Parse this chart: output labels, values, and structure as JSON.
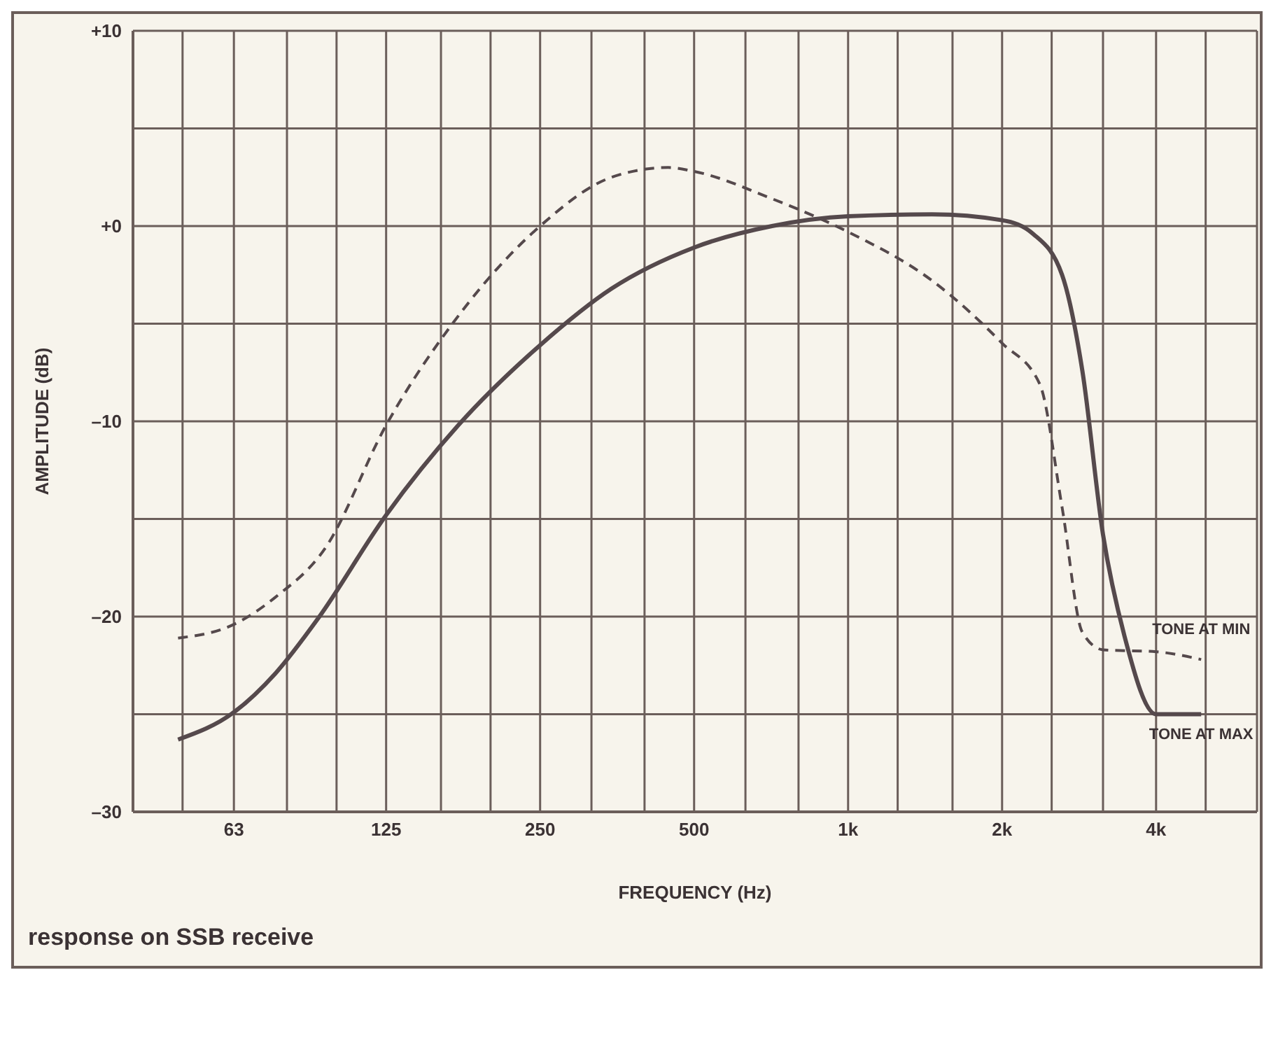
{
  "chart_data": {
    "type": "line",
    "xlabel": "FREQUENCY (Hz)",
    "ylabel": "AMPLITUDE (dB)",
    "log": "x",
    "grid": true,
    "marker": "none",
    "xlim": [
      40,
      6300
    ],
    "xticks": [
      {
        "value": 50,
        "label": null
      },
      {
        "value": 63,
        "label": "63"
      },
      {
        "value": 80,
        "label": null
      },
      {
        "value": 100,
        "label": null
      },
      {
        "value": 125,
        "label": "125"
      },
      {
        "value": 160,
        "label": null
      },
      {
        "value": 200,
        "label": null
      },
      {
        "value": 250,
        "label": "250"
      },
      {
        "value": 315,
        "label": null
      },
      {
        "value": 400,
        "label": null
      },
      {
        "value": 500,
        "label": "500"
      },
      {
        "value": 630,
        "label": null
      },
      {
        "value": 800,
        "label": null
      },
      {
        "value": 1000,
        "label": "1k"
      },
      {
        "value": 1250,
        "label": null
      },
      {
        "value": 1600,
        "label": null
      },
      {
        "value": 2000,
        "label": "2k"
      },
      {
        "value": 2500,
        "label": null
      },
      {
        "value": 3150,
        "label": null
      },
      {
        "value": 4000,
        "label": "4k"
      },
      {
        "value": 5000,
        "label": null
      }
    ],
    "ylim": [
      -30,
      10
    ],
    "yticks": [
      {
        "value": -30,
        "label": "–30"
      },
      {
        "value": -25,
        "label": null
      },
      {
        "value": -20,
        "label": "–20"
      },
      {
        "value": -15,
        "label": null
      },
      {
        "value": -10,
        "label": "–10"
      },
      {
        "value": -5,
        "label": null
      },
      {
        "value": 0,
        "label": "+0"
      },
      {
        "value": 5,
        "label": null
      },
      {
        "value": 10,
        "label": "+10"
      }
    ],
    "series": [
      {
        "color": "#55494c",
        "line_style": "solid",
        "x": [
          49,
          63,
          76,
          92,
          125,
          173,
          250,
          345,
          500,
          710,
          1000,
          1460,
          2000,
          2300,
          2620,
          2870,
          3150,
          3470,
          4000,
          4900
        ],
        "values": [
          -26.3,
          -24.9,
          -22.9,
          -20.1,
          -14.8,
          -10.2,
          -6.1,
          -3.2,
          -1.1,
          0,
          0.5,
          0.6,
          0.3,
          -0.4,
          -2.5,
          -7.4,
          -15.8,
          -21,
          -25,
          -25
        ]
      },
      {
        "color": "#55494c",
        "line_style": "dashed",
        "x": [
          49,
          63,
          76,
          95,
          125,
          173,
          250,
          345,
          445,
          500,
          710,
          1000,
          1460,
          2000,
          2370,
          2620,
          2870,
          3150,
          4000,
          4900
        ],
        "values": [
          -21.1,
          -20.4,
          -19,
          -16.5,
          -10.2,
          -4.6,
          0,
          2.5,
          3,
          2.8,
          1.4,
          -0.3,
          -2.8,
          -6,
          -8.1,
          -14.4,
          -20.8,
          -21.7,
          -21.8,
          -22.2
        ]
      }
    ],
    "annotations": [
      {
        "text": "TONE AT MIN",
        "x": 4900,
        "y": -22.2
      },
      {
        "text": "TONE AT MAX",
        "x": 4900,
        "y": -25
      },
      "response on SSB receive"
    ]
  }
}
